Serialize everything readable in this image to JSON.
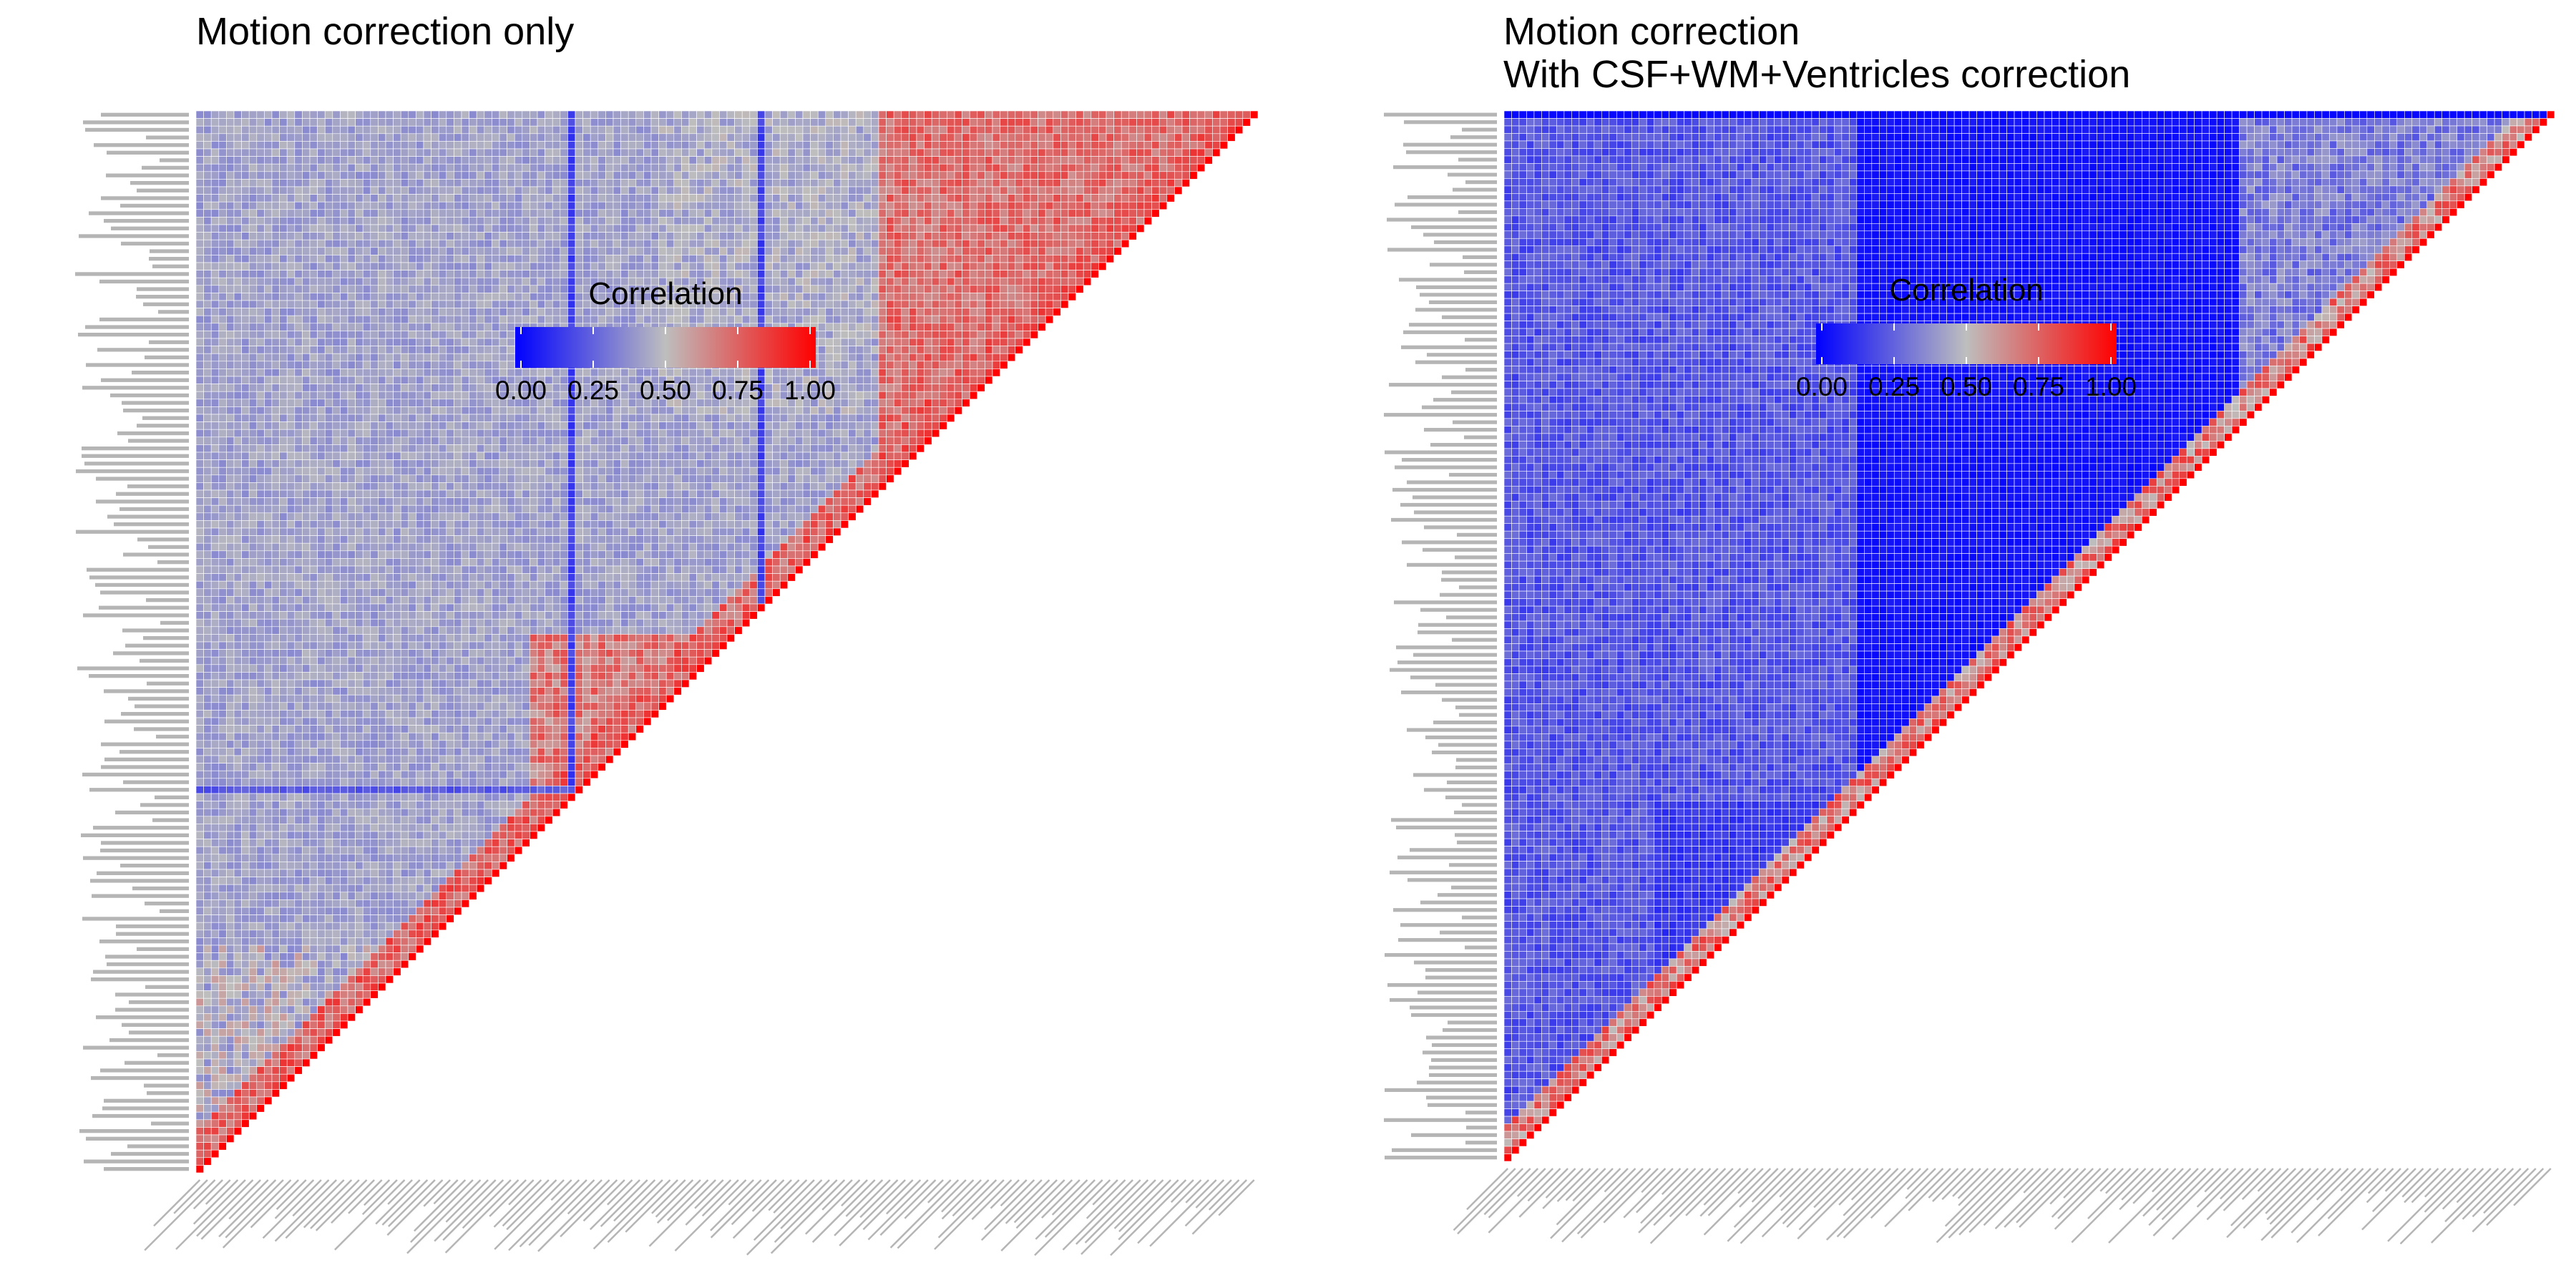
{
  "chart_data": [
    {
      "type": "heatmap",
      "title": "Motion correction only",
      "title_lines": [
        "Motion correction only"
      ],
      "n_regions": 140,
      "matrix": "lower-triangular correlation matrix of region time series; diagonal = 1.00",
      "value_description": "mostly 0.30-0.60; block of high correlation (0.75-0.95) in the lower-left/upper-left regions; a dark vertical band near column 49 and a dark horizontal band near row 50",
      "legend": {
        "title": "Correlation",
        "ticks": [
          "0.00",
          "0.25",
          "0.50",
          "0.75",
          "1.00"
        ],
        "range": [
          0,
          1
        ],
        "colors": {
          "low": "#0000ff",
          "mid": "#bebebe",
          "high": "#ff0000"
        },
        "placement": "inside-top-center"
      },
      "grid": true,
      "grid_color": "#ffffff"
    },
    {
      "type": "heatmap",
      "title": "Motion correction\nWith CSF+WM+Ventricles correction",
      "title_lines": [
        "Motion correction",
        "With CSF+WM+Ventricles correction"
      ],
      "n_regions": 140,
      "matrix": "lower-triangular correlation matrix of region time series; diagonal = 1.00",
      "value_description": "mostly 0.00-0.35; large saturated blue blocks (~0.00) in the central-right area; only near-diagonal cells reach 0.60-0.90",
      "legend": {
        "title": "Correlation",
        "ticks": [
          "0.00",
          "0.25",
          "0.50",
          "0.75",
          "1.00"
        ],
        "range": [
          0,
          1
        ],
        "colors": {
          "low": "#0000ff",
          "mid": "#bebebe",
          "high": "#ff0000"
        },
        "placement": "inside-top-center"
      },
      "grid": true,
      "grid_color": "#ffffff"
    }
  ]
}
